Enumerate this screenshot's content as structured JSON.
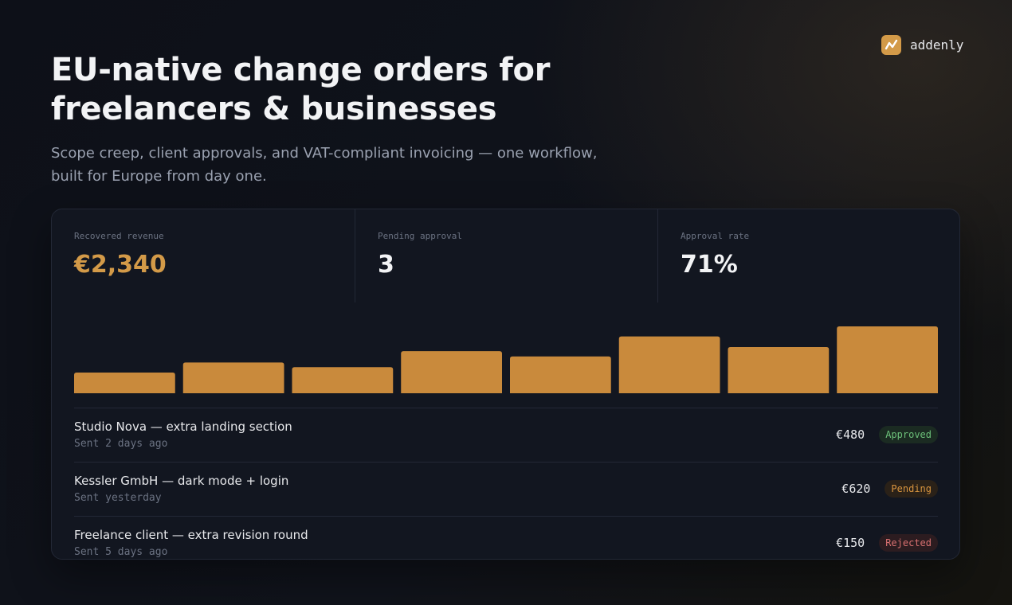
{
  "brand": "addenly",
  "header": {
    "title": "EU-native change orders for freelancers & businesses",
    "subtitle": "Scope creep, client approvals, and VAT-compliant invoicing — one workflow, built for Europe from day one."
  },
  "stats": [
    {
      "label": "Recovered revenue",
      "value": "€2,340"
    },
    {
      "label": "Pending approval",
      "value": "3"
    },
    {
      "label": "Approval rate",
      "value": "71%"
    }
  ],
  "chart_data": {
    "type": "bar",
    "values": [
      31,
      46,
      39,
      63,
      55,
      85,
      69,
      100
    ],
    "ylim": [
      0,
      100
    ],
    "color": "#c98a3c"
  },
  "orders": [
    {
      "title": "Studio Nova — extra landing section",
      "sent": "Sent 2 days ago",
      "amount": "€480",
      "status": "Approved"
    },
    {
      "title": "Kessler GmbH — dark mode + login",
      "sent": "Sent yesterday",
      "amount": "€620",
      "status": "Pending"
    },
    {
      "title": "Freelance client — extra revision round",
      "sent": "Sent 5 days ago",
      "amount": "€150",
      "status": "Rejected"
    }
  ]
}
